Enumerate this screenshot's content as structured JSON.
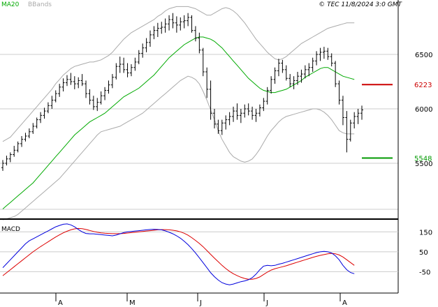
{
  "header": {
    "indicator_ma": "MA20",
    "indicator_bb": "BBands",
    "copyright": "© TEC 11/8/2024 3:0 GMT"
  },
  "macd_panel": {
    "title": "MACD"
  },
  "colors": {
    "price": "#000000",
    "ma20": "#00aa00",
    "bbands": "#aaaaaa",
    "resistance": "#cc0000",
    "support": "#009900",
    "macd_line": "#0000dd",
    "signal_line": "#dd0000",
    "grid": "#cccccc"
  },
  "chart_data": [
    {
      "type": "bar",
      "subtype": "ohlc",
      "x_labels": [
        "A",
        "M",
        "J",
        "J",
        "A"
      ],
      "y_ticks": [
        {
          "value": 5500,
          "label": "5500"
        },
        {
          "value": 6000,
          "label": "6000"
        },
        {
          "value": 6500,
          "label": "6500"
        }
      ],
      "ylim": [
        5000,
        7000
      ],
      "levels": [
        {
          "name": "resistance",
          "value": 6223,
          "label": "6223"
        },
        {
          "name": "support",
          "value": 5548,
          "label": "5548"
        }
      ],
      "ohlc": [
        [
          5460,
          5530,
          5430,
          5500
        ],
        [
          5500,
          5570,
          5480,
          5540
        ],
        [
          5540,
          5600,
          5510,
          5580
        ],
        [
          5580,
          5660,
          5560,
          5620
        ],
        [
          5620,
          5700,
          5600,
          5680
        ],
        [
          5680,
          5750,
          5650,
          5720
        ],
        [
          5720,
          5780,
          5700,
          5750
        ],
        [
          5750,
          5820,
          5730,
          5790
        ],
        [
          5790,
          5870,
          5770,
          5840
        ],
        [
          5840,
          5920,
          5820,
          5900
        ],
        [
          5900,
          5970,
          5870,
          5940
        ],
        [
          5940,
          6010,
          5910,
          5980
        ],
        [
          5980,
          6060,
          5960,
          6030
        ],
        [
          6030,
          6120,
          6000,
          6080
        ],
        [
          6080,
          6170,
          6060,
          6140
        ],
        [
          6140,
          6230,
          6110,
          6200
        ],
        [
          6200,
          6280,
          6160,
          6240
        ],
        [
          6240,
          6310,
          6210,
          6270
        ],
        [
          6270,
          6330,
          6220,
          6250
        ],
        [
          6250,
          6300,
          6180,
          6230
        ],
        [
          6230,
          6290,
          6190,
          6260
        ],
        [
          6260,
          6320,
          6210,
          6230
        ],
        [
          6230,
          6260,
          6100,
          6140
        ],
        [
          6140,
          6180,
          6040,
          6080
        ],
        [
          6080,
          6120,
          5990,
          6020
        ],
        [
          6020,
          6100,
          5980,
          6060
        ],
        [
          6060,
          6160,
          6040,
          6120
        ],
        [
          6120,
          6200,
          6080,
          6170
        ],
        [
          6170,
          6260,
          6140,
          6220
        ],
        [
          6220,
          6320,
          6190,
          6290
        ],
        [
          6290,
          6420,
          6270,
          6390
        ],
        [
          6390,
          6480,
          6330,
          6410
        ],
        [
          6410,
          6470,
          6330,
          6360
        ],
        [
          6360,
          6420,
          6290,
          6330
        ],
        [
          6330,
          6410,
          6300,
          6380
        ],
        [
          6380,
          6470,
          6350,
          6430
        ],
        [
          6430,
          6540,
          6410,
          6510
        ],
        [
          6510,
          6600,
          6470,
          6560
        ],
        [
          6560,
          6650,
          6520,
          6610
        ],
        [
          6610,
          6720,
          6570,
          6680
        ],
        [
          6680,
          6760,
          6640,
          6720
        ],
        [
          6720,
          6790,
          6660,
          6740
        ],
        [
          6740,
          6800,
          6690,
          6750
        ],
        [
          6750,
          6830,
          6700,
          6780
        ],
        [
          6780,
          6860,
          6720,
          6820
        ],
        [
          6820,
          6880,
          6740,
          6790
        ],
        [
          6790,
          6850,
          6700,
          6770
        ],
        [
          6770,
          6840,
          6720,
          6800
        ],
        [
          6800,
          6860,
          6740,
          6810
        ],
        [
          6810,
          6880,
          6760,
          6840
        ],
        [
          6840,
          6860,
          6700,
          6720
        ],
        [
          6720,
          6760,
          6620,
          6650
        ],
        [
          6650,
          6700,
          6510,
          6540
        ],
        [
          6540,
          6560,
          6300,
          6340
        ],
        [
          6340,
          6380,
          6100,
          6180
        ],
        [
          6180,
          6260,
          5900,
          5960
        ],
        [
          5960,
          6000,
          5820,
          5860
        ],
        [
          5860,
          5900,
          5770,
          5800
        ],
        [
          5800,
          5900,
          5760,
          5870
        ],
        [
          5870,
          5940,
          5810,
          5900
        ],
        [
          5900,
          5970,
          5850,
          5930
        ],
        [
          5930,
          6020,
          5880,
          5980
        ],
        [
          5980,
          6050,
          5900,
          5940
        ],
        [
          5940,
          6000,
          5870,
          5960
        ],
        [
          5960,
          6040,
          5920,
          6000
        ],
        [
          6000,
          6050,
          5940,
          5980
        ],
        [
          5980,
          6020,
          5900,
          5940
        ],
        [
          5940,
          6000,
          5880,
          5960
        ],
        [
          5960,
          6040,
          5930,
          6010
        ],
        [
          6010,
          6100,
          5980,
          6070
        ],
        [
          6070,
          6200,
          6040,
          6170
        ],
        [
          6170,
          6300,
          6140,
          6270
        ],
        [
          6270,
          6380,
          6230,
          6350
        ],
        [
          6350,
          6460,
          6300,
          6420
        ],
        [
          6420,
          6450,
          6330,
          6360
        ],
        [
          6360,
          6400,
          6260,
          6280
        ],
        [
          6280,
          6320,
          6200,
          6230
        ],
        [
          6230,
          6300,
          6180,
          6260
        ],
        [
          6260,
          6340,
          6220,
          6300
        ],
        [
          6300,
          6360,
          6240,
          6320
        ],
        [
          6320,
          6400,
          6280,
          6360
        ],
        [
          6360,
          6420,
          6300,
          6380
        ],
        [
          6380,
          6470,
          6340,
          6440
        ],
        [
          6440,
          6530,
          6400,
          6500
        ],
        [
          6500,
          6560,
          6440,
          6520
        ],
        [
          6520,
          6570,
          6460,
          6530
        ],
        [
          6530,
          6560,
          6450,
          6480
        ],
        [
          6480,
          6510,
          6390,
          6420
        ],
        [
          6420,
          6440,
          6200,
          6230
        ],
        [
          6230,
          6260,
          6040,
          6080
        ],
        [
          6080,
          6120,
          5850,
          5920
        ],
        [
          5920,
          5980,
          5600,
          5720
        ],
        [
          5720,
          5900,
          5700,
          5870
        ],
        [
          5870,
          5970,
          5820,
          5930
        ],
        [
          5930,
          6000,
          5860,
          5960
        ],
        [
          5960,
          6030,
          5900,
          5990
        ]
      ],
      "ma20": [
        5080,
        5110,
        5140,
        5170,
        5200,
        5230,
        5260,
        5290,
        5320,
        5360,
        5400,
        5440,
        5480,
        5520,
        5560,
        5600,
        5640,
        5680,
        5720,
        5760,
        5790,
        5820,
        5850,
        5880,
        5900,
        5920,
        5940,
        5960,
        5990,
        6020,
        6050,
        6080,
        6110,
        6130,
        6150,
        6170,
        6190,
        6220,
        6250,
        6280,
        6310,
        6350,
        6390,
        6430,
        6470,
        6500,
        6530,
        6560,
        6590,
        6610,
        6630,
        6650,
        6660,
        6660,
        6650,
        6640,
        6620,
        6590,
        6560,
        6520,
        6480,
        6440,
        6400,
        6360,
        6320,
        6280,
        6250,
        6220,
        6190,
        6170,
        6160,
        6150,
        6150,
        6160,
        6170,
        6180,
        6200,
        6220,
        6240,
        6260,
        6290,
        6310,
        6330,
        6350,
        6370,
        6380,
        6380,
        6360,
        6340,
        6320,
        6300,
        6290,
        6280,
        6270
      ],
      "bb_upper": [
        5700,
        5720,
        5740,
        5780,
        5820,
        5860,
        5900,
        5940,
        5980,
        6020,
        6060,
        6100,
        6140,
        6180,
        6230,
        6270,
        6310,
        6340,
        6370,
        6390,
        6400,
        6410,
        6420,
        6430,
        6430,
        6440,
        6450,
        6470,
        6490,
        6520,
        6560,
        6600,
        6640,
        6670,
        6700,
        6720,
        6740,
        6760,
        6780,
        6800,
        6820,
        6850,
        6870,
        6900,
        6920,
        6930,
        6940,
        6940,
        6940,
        6940,
        6930,
        6920,
        6900,
        6880,
        6860,
        6860,
        6880,
        6900,
        6920,
        6930,
        6920,
        6900,
        6870,
        6830,
        6790,
        6740,
        6690,
        6640,
        6600,
        6560,
        6520,
        6490,
        6460,
        6450,
        6460,
        6480,
        6510,
        6540,
        6570,
        6600,
        6620,
        6640,
        6660,
        6680,
        6700,
        6720,
        6740,
        6750,
        6760,
        6770,
        6780,
        6790,
        6790,
        6790
      ],
      "bb_lower": [
        4980,
        4990,
        5000,
        5010,
        5030,
        5060,
        5090,
        5120,
        5150,
        5180,
        5210,
        5240,
        5270,
        5300,
        5330,
        5360,
        5400,
        5440,
        5480,
        5520,
        5560,
        5600,
        5640,
        5680,
        5720,
        5760,
        5790,
        5800,
        5810,
        5820,
        5830,
        5840,
        5860,
        5880,
        5900,
        5920,
        5940,
        5960,
        5990,
        6020,
        6050,
        6080,
        6110,
        6140,
        6170,
        6200,
        6230,
        6260,
        6280,
        6300,
        6290,
        6270,
        6230,
        6160,
        6080,
        5990,
        5900,
        5800,
        5720,
        5660,
        5600,
        5560,
        5540,
        5520,
        5510,
        5520,
        5540,
        5580,
        5630,
        5690,
        5750,
        5800,
        5840,
        5880,
        5910,
        5930,
        5940,
        5950,
        5960,
        5970,
        5980,
        5990,
        6000,
        6000,
        5990,
        5970,
        5940,
        5900,
        5850,
        5800,
        5780,
        5770,
        5770,
        5770
      ]
    },
    {
      "type": "line",
      "name": "MACD",
      "y_ticks": [
        {
          "value": 150,
          "label": "150"
        },
        {
          "value": 50,
          "label": "50"
        },
        {
          "value": -50,
          "label": "-50"
        }
      ],
      "ylim": [
        -150,
        200
      ],
      "macd": [
        -30,
        -10,
        10,
        30,
        50,
        70,
        90,
        105,
        115,
        125,
        135,
        145,
        155,
        165,
        175,
        182,
        188,
        190,
        185,
        175,
        162,
        150,
        142,
        140,
        140,
        138,
        136,
        134,
        132,
        130,
        134,
        140,
        146,
        150,
        152,
        154,
        156,
        158,
        160,
        162,
        163,
        162,
        160,
        155,
        148,
        140,
        130,
        118,
        103,
        86,
        66,
        44,
        20,
        -5,
        -30,
        -55,
        -75,
        -92,
        -105,
        -112,
        -116,
        -112,
        -106,
        -100,
        -96,
        -90,
        -80,
        -62,
        -40,
        -22,
        -18,
        -20,
        -18,
        -12,
        -8,
        -2,
        4,
        10,
        16,
        22,
        28,
        34,
        40,
        46,
        50,
        52,
        50,
        44,
        30,
        10,
        -18,
        -40,
        -54,
        -60
      ],
      "signal": [
        -70,
        -55,
        -40,
        -25,
        -10,
        5,
        20,
        35,
        50,
        63,
        76,
        88,
        100,
        112,
        124,
        135,
        145,
        153,
        160,
        165,
        167,
        166,
        162,
        157,
        152,
        148,
        145,
        143,
        142,
        141,
        141,
        141,
        142,
        144,
        146,
        148,
        150,
        152,
        154,
        156,
        158,
        160,
        161,
        161,
        160,
        158,
        155,
        150,
        143,
        133,
        121,
        107,
        92,
        75,
        56,
        37,
        18,
        0,
        -18,
        -34,
        -48,
        -60,
        -70,
        -78,
        -84,
        -88,
        -88,
        -84,
        -76,
        -64,
        -52,
        -42,
        -35,
        -30,
        -25,
        -20,
        -14,
        -8,
        -2,
        4,
        10,
        16,
        22,
        27,
        32,
        36,
        40,
        42,
        40,
        34,
        24,
        10,
        -4,
        -18
      ]
    }
  ]
}
